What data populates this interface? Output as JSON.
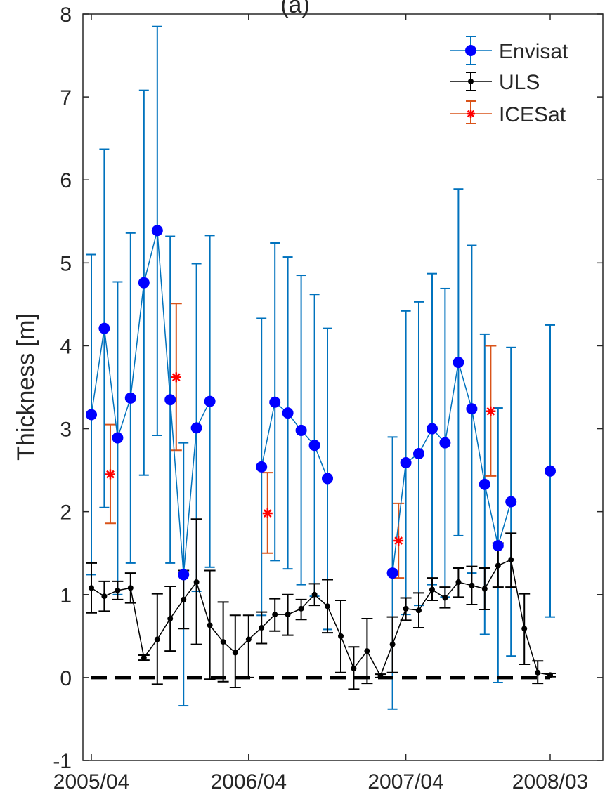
{
  "chart_data": {
    "type": "line",
    "title": "(a)",
    "xlabel": "",
    "ylabel": "Thickness [m]",
    "xlim": [
      "2005-04",
      "2008-03"
    ],
    "ylim": [
      -1,
      8
    ],
    "x_ticks": [
      "2005/04",
      "2006/04",
      "2007/04",
      "2008/03"
    ],
    "y_ticks": [
      "-1",
      "0",
      "1",
      "2",
      "3",
      "4",
      "5",
      "6",
      "7",
      "8"
    ],
    "legend_position": "top-right",
    "colors": {
      "Envisat": "#0000ff",
      "Envisat_error": "#0072bd",
      "ULS": "#000000",
      "ICESat": "#ff0000",
      "ICESat_error": "#d95319"
    },
    "series": [
      {
        "name": "Envisat",
        "segments": [
          [
            {
              "x": "2005-04-01",
              "y": 3.17,
              "lo": 1.24,
              "hi": 5.1
            },
            {
              "x": "2005-05-01",
              "y": 4.21,
              "lo": 2.05,
              "hi": 6.37
            },
            {
              "x": "2005-06-01",
              "y": 2.89,
              "lo": 1.0,
              "hi": 4.77
            },
            {
              "x": "2005-07-01",
              "y": 3.37,
              "lo": 1.38,
              "hi": 5.36
            },
            {
              "x": "2005-08-01",
              "y": 4.76,
              "lo": 2.44,
              "hi": 7.08
            },
            {
              "x": "2005-09-01",
              "y": 5.39,
              "lo": 2.92,
              "hi": 7.85
            },
            {
              "x": "2005-10-01",
              "y": 3.35,
              "lo": 1.38,
              "hi": 5.32
            },
            {
              "x": "2005-11-01",
              "y": 1.24,
              "lo": -0.34,
              "hi": 2.83
            },
            {
              "x": "2005-12-01",
              "y": 3.01,
              "lo": 1.04,
              "hi": 4.99
            },
            {
              "x": "2006-01-01",
              "y": 3.33,
              "lo": 1.33,
              "hi": 5.33
            }
          ],
          [
            {
              "x": "2006-05-01",
              "y": 2.54,
              "lo": 0.75,
              "hi": 4.33
            },
            {
              "x": "2006-06-01",
              "y": 3.32,
              "lo": 1.41,
              "hi": 5.24
            },
            {
              "x": "2006-07-01",
              "y": 3.19,
              "lo": 1.31,
              "hi": 5.07
            },
            {
              "x": "2006-08-01",
              "y": 2.98,
              "lo": 1.12,
              "hi": 4.85
            },
            {
              "x": "2006-09-01",
              "y": 2.8,
              "lo": 0.98,
              "hi": 4.62
            },
            {
              "x": "2006-10-01",
              "y": 2.4,
              "lo": 0.58,
              "hi": 4.21
            }
          ],
          [
            {
              "x": "2007-03-01",
              "y": 1.26,
              "lo": -0.38,
              "hi": 2.9
            },
            {
              "x": "2007-04-01",
              "y": 2.59,
              "lo": 0.76,
              "hi": 4.42
            },
            {
              "x": "2007-05-01",
              "y": 2.7,
              "lo": 0.87,
              "hi": 4.53
            },
            {
              "x": "2007-06-01",
              "y": 3.0,
              "lo": 1.12,
              "hi": 4.87
            },
            {
              "x": "2007-07-01",
              "y": 2.83,
              "lo": 0.97,
              "hi": 4.69
            },
            {
              "x": "2007-08-01",
              "y": 3.8,
              "lo": 1.71,
              "hi": 5.89
            },
            {
              "x": "2007-09-01",
              "y": 3.24,
              "lo": 1.26,
              "hi": 5.21
            },
            {
              "x": "2007-10-01",
              "y": 2.33,
              "lo": 0.52,
              "hi": 4.14
            },
            {
              "x": "2007-11-01",
              "y": 1.59,
              "lo": -0.06,
              "hi": 3.25
            },
            {
              "x": "2007-12-01",
              "y": 2.12,
              "lo": 0.26,
              "hi": 3.98
            }
          ],
          [
            {
              "x": "2008-03-01",
              "y": 2.49,
              "lo": 0.73,
              "hi": 4.25
            }
          ]
        ]
      },
      {
        "name": "ULS",
        "points": [
          {
            "x": "2005-04-01",
            "y": 1.08,
            "lo": 0.78,
            "hi": 1.38
          },
          {
            "x": "2005-05-01",
            "y": 0.98,
            "lo": 0.8,
            "hi": 1.16
          },
          {
            "x": "2005-06-01",
            "y": 1.05,
            "lo": 0.94,
            "hi": 1.16
          },
          {
            "x": "2005-07-01",
            "y": 1.08,
            "lo": 0.9,
            "hi": 1.26
          },
          {
            "x": "2005-08-01",
            "y": 0.24,
            "lo": 0.21,
            "hi": 0.27
          },
          {
            "x": "2005-09-01",
            "y": 0.46,
            "lo": -0.08,
            "hi": 1.01
          },
          {
            "x": "2005-10-01",
            "y": 0.71,
            "lo": 0.32,
            "hi": 1.1
          },
          {
            "x": "2005-11-01",
            "y": 0.94,
            "lo": 0.59,
            "hi": 1.29
          },
          {
            "x": "2005-12-01",
            "y": 1.15,
            "lo": 0.4,
            "hi": 1.91
          },
          {
            "x": "2006-01-01",
            "y": 0.63,
            "lo": -0.02,
            "hi": 1.29
          },
          {
            "x": "2006-02-01",
            "y": 0.43,
            "lo": -0.05,
            "hi": 0.91
          },
          {
            "x": "2006-03-01",
            "y": 0.3,
            "lo": -0.12,
            "hi": 0.75
          },
          {
            "x": "2006-04-01",
            "y": 0.46,
            "lo": 0.0,
            "hi": 0.75
          },
          {
            "x": "2006-05-01",
            "y": 0.6,
            "lo": 0.41,
            "hi": 0.79
          },
          {
            "x": "2006-06-01",
            "y": 0.76,
            "lo": 0.56,
            "hi": 0.95
          },
          {
            "x": "2006-07-01",
            "y": 0.76,
            "lo": 0.51,
            "hi": 1.0
          },
          {
            "x": "2006-08-01",
            "y": 0.83,
            "lo": 0.7,
            "hi": 0.94
          },
          {
            "x": "2006-09-01",
            "y": 1.0,
            "lo": 0.87,
            "hi": 1.13
          },
          {
            "x": "2006-10-01",
            "y": 0.86,
            "lo": 0.54,
            "hi": 1.18
          },
          {
            "x": "2006-11-01",
            "y": 0.5,
            "lo": 0.06,
            "hi": 0.93
          },
          {
            "x": "2006-12-01",
            "y": 0.11,
            "lo": -0.14,
            "hi": 0.37
          },
          {
            "x": "2007-01-01",
            "y": 0.32,
            "lo": -0.07,
            "hi": 0.71
          },
          {
            "x": "2007-02-01",
            "y": 0.02,
            "lo": 0.0,
            "hi": 0.04
          },
          {
            "x": "2007-03-01",
            "y": 0.4,
            "lo": 0.06,
            "hi": 0.73
          },
          {
            "x": "2007-04-01",
            "y": 0.83,
            "lo": 0.69,
            "hi": 0.96
          },
          {
            "x": "2007-05-01",
            "y": 0.81,
            "lo": 0.6,
            "hi": 1.02
          },
          {
            "x": "2007-06-01",
            "y": 1.06,
            "lo": 0.93,
            "hi": 1.2
          },
          {
            "x": "2007-07-01",
            "y": 0.96,
            "lo": 0.84,
            "hi": 1.09
          },
          {
            "x": "2007-08-01",
            "y": 1.15,
            "lo": 0.97,
            "hi": 1.32
          },
          {
            "x": "2007-09-01",
            "y": 1.11,
            "lo": 0.88,
            "hi": 1.34
          },
          {
            "x": "2007-10-01",
            "y": 1.07,
            "lo": 0.82,
            "hi": 1.32
          },
          {
            "x": "2007-11-01",
            "y": 1.35,
            "lo": 1.09,
            "hi": 1.62
          },
          {
            "x": "2007-12-01",
            "y": 1.42,
            "lo": 1.09,
            "hi": 1.74
          },
          {
            "x": "2008-01-01",
            "y": 0.59,
            "lo": 0.16,
            "hi": 1.01
          },
          {
            "x": "2008-02-01",
            "y": 0.06,
            "lo": -0.07,
            "hi": 0.2
          },
          {
            "x": "2008-03-01",
            "y": 0.03,
            "lo": 0.01,
            "hi": 0.05
          }
        ]
      },
      {
        "name": "ICESat",
        "points": [
          {
            "x": "2005-05-15",
            "y": 2.45,
            "lo": 1.86,
            "hi": 3.05
          },
          {
            "x": "2005-10-15",
            "y": 3.62,
            "lo": 2.74,
            "hi": 4.51
          },
          {
            "x": "2006-05-15",
            "y": 1.98,
            "lo": 1.5,
            "hi": 2.47
          },
          {
            "x": "2007-03-15",
            "y": 1.65,
            "lo": 1.2,
            "hi": 2.1
          },
          {
            "x": "2007-10-15",
            "y": 3.21,
            "lo": 2.43,
            "hi": 4.0
          }
        ]
      }
    ],
    "reference_line": {
      "y": 0,
      "style": "dashed"
    }
  }
}
